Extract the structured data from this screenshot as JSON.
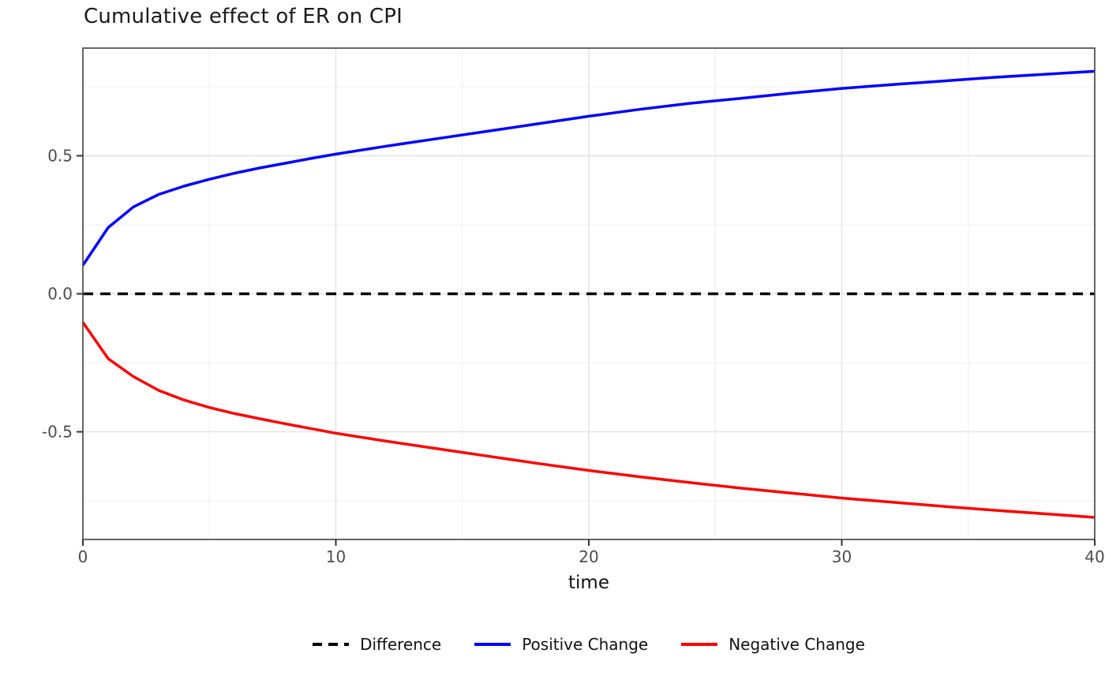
{
  "page": {
    "background": "#ffffff"
  },
  "colors": {
    "positive_line": "#0000ff",
    "negative_line": "#ff0000",
    "difference_line": "#000000",
    "grid_major": "#e2e2e2",
    "grid_minor": "#efefef",
    "panel_border": "#555555",
    "tick_mark": "#333333",
    "tick_label": "#4d4d4d",
    "title_text": "#1a1a1a"
  },
  "chart_data": {
    "type": "line",
    "title": "Cumulative effect of ER on CPI",
    "xlabel": "time",
    "ylabel": "",
    "xlim": [
      0,
      40
    ],
    "ylim": [
      -0.89,
      0.89
    ],
    "x_ticks": [
      0,
      10,
      20,
      30,
      40
    ],
    "x_tick_labels": [
      "0",
      "10",
      "20",
      "30",
      "40"
    ],
    "x_minor_ticks": [
      5,
      15,
      25,
      35
    ],
    "y_ticks": [
      -0.5,
      0.0,
      0.5
    ],
    "y_tick_labels": [
      "-0.5",
      "0.0",
      "0.5"
    ],
    "y_minor_ticks": [
      -0.75,
      -0.25,
      0.25,
      0.75
    ],
    "grid": true,
    "legend_position": "bottom",
    "series": [
      {
        "name": "Difference",
        "color": "#000000",
        "linestyle": "dashed",
        "x": [
          0,
          40
        ],
        "values": [
          0,
          0
        ]
      },
      {
        "name": "Positive Change",
        "color": "#0000ff",
        "linestyle": "solid",
        "x": [
          0,
          1,
          2,
          3,
          4,
          5,
          6,
          7,
          8,
          9,
          10,
          12,
          14,
          16,
          18,
          20,
          22,
          24,
          26,
          28,
          30,
          32,
          34,
          36,
          38,
          40
        ],
        "values": [
          0.103,
          0.24,
          0.315,
          0.36,
          0.39,
          0.415,
          0.437,
          0.456,
          0.473,
          0.49,
          0.506,
          0.535,
          0.562,
          0.589,
          0.616,
          0.643,
          0.668,
          0.69,
          0.708,
          0.727,
          0.744,
          0.758,
          0.771,
          0.784,
          0.795,
          0.806
        ]
      },
      {
        "name": "Negative Change",
        "color": "#ff0000",
        "linestyle": "solid",
        "x": [
          0,
          1,
          2,
          3,
          4,
          5,
          6,
          7,
          8,
          9,
          10,
          12,
          14,
          16,
          18,
          20,
          22,
          24,
          26,
          28,
          30,
          32,
          34,
          36,
          38,
          40
        ],
        "values": [
          -0.103,
          -0.235,
          -0.3,
          -0.35,
          -0.385,
          -0.412,
          -0.434,
          -0.453,
          -0.471,
          -0.488,
          -0.505,
          -0.534,
          -0.561,
          -0.588,
          -0.615,
          -0.64,
          -0.663,
          -0.684,
          -0.704,
          -0.722,
          -0.74,
          -0.755,
          -0.77,
          -0.784,
          -0.797,
          -0.81
        ]
      }
    ]
  }
}
